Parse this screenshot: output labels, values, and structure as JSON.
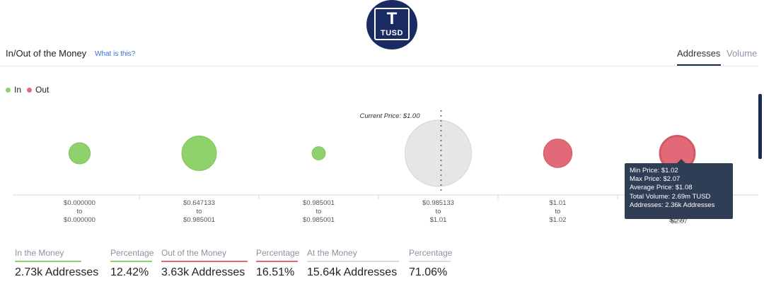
{
  "logo": {
    "letter": "T",
    "text": "TUSD"
  },
  "header": {
    "title": "In/Out of the Money",
    "help_link": "What is this?",
    "tabs": [
      {
        "label": "Addresses",
        "active": true
      },
      {
        "label": "Volume",
        "active": false
      }
    ]
  },
  "legend": [
    {
      "label": "In",
      "color": "#8fd16a"
    },
    {
      "label": "Out",
      "color": "#e26a78"
    }
  ],
  "colors": {
    "in": "#8fd16a",
    "out": "#e26a78",
    "at": "#e6e6e6",
    "accent": "#1b2a55"
  },
  "chart_data": {
    "type": "scatter",
    "annotation": "Current Price: $1.00",
    "buckets": [
      {
        "from": "$0.000000",
        "to": "$0.000000",
        "status": "in",
        "size": 0.32
      },
      {
        "from": "$0.647133",
        "to": "$0.985001",
        "status": "in",
        "size": 0.52
      },
      {
        "from": "$0.985001",
        "to": "$0.985001",
        "status": "in",
        "size": 0.2
      },
      {
        "from": "$0.985133",
        "to": "$1.01",
        "status": "at",
        "size": 1.0
      },
      {
        "from": "$1.01",
        "to": "$1.02",
        "status": "out",
        "size": 0.43
      },
      {
        "from": "$1.02",
        "to": "$2.07",
        "status": "out",
        "size": 0.52
      }
    ],
    "tooltip": [
      "Min Price: $1.02",
      "Max Price: $2.07",
      "Average Price: $1.08",
      "Total Volume: 2.69m TUSD",
      "Addresses: 2.36k Addresses"
    ],
    "tail_label": "$2.07"
  },
  "stats": [
    {
      "label": "In the Money",
      "value": "2.73k Addresses",
      "color": "#8fd16a"
    },
    {
      "label": "Percentage",
      "value": "12.42%",
      "color": "#8fd16a"
    },
    {
      "label": "Out of the Money",
      "value": "3.63k Addresses",
      "color": "#e26a78"
    },
    {
      "label": "Percentage",
      "value": "16.51%",
      "color": "#e26a78"
    },
    {
      "label": "At the Money",
      "value": "15.64k Addresses",
      "color": "#d6d9de"
    },
    {
      "label": "Percentage",
      "value": "71.06%",
      "color": "#d6d9de"
    }
  ]
}
